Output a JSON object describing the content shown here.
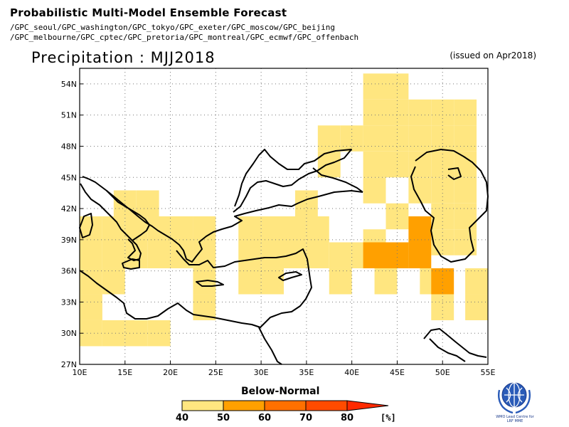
{
  "header": {
    "title": "Probabilistic Multi-Model Ensemble Forecast",
    "centers_line1": "/GPC_seoul/GPC_washington/GPC_tokyo/GPC_exeter/GPC_moscow/GPC_beijing",
    "centers_line2": "/GPC_melbourne/GPC_cptec/GPC_pretoria/GPC_montreal/GPC_ecmwf/GPC_offenbach",
    "variable": "Precipitation : MJJ2018",
    "issued": "(issued on Apr2018)"
  },
  "map": {
    "lon_range": [
      10,
      55
    ],
    "lat_range": [
      27,
      55.5
    ],
    "lon_ticks": [
      "10E",
      "15E",
      "20E",
      "25E",
      "30E",
      "35E",
      "40E",
      "45E",
      "50E",
      "55E"
    ],
    "lat_ticks": [
      "27N",
      "30N",
      "33N",
      "36N",
      "39N",
      "42N",
      "45N",
      "48N",
      "51N",
      "54N"
    ],
    "grid": "dotted",
    "cell_size_deg": 2.5,
    "below_normal_cells": [
      {
        "lon": 42.5,
        "lat": 53.75,
        "category": "40-50"
      },
      {
        "lon": 45.0,
        "lat": 53.75,
        "category": "40-50"
      },
      {
        "lon": 42.5,
        "lat": 51.25,
        "category": "40-50"
      },
      {
        "lon": 45.0,
        "lat": 51.25,
        "category": "40-50"
      },
      {
        "lon": 47.5,
        "lat": 51.25,
        "category": "40-50"
      },
      {
        "lon": 50.0,
        "lat": 51.25,
        "category": "40-50"
      },
      {
        "lon": 52.5,
        "lat": 51.25,
        "category": "40-50"
      },
      {
        "lon": 37.5,
        "lat": 48.75,
        "category": "40-50"
      },
      {
        "lon": 40.0,
        "lat": 48.75,
        "category": "40-50"
      },
      {
        "lon": 42.5,
        "lat": 48.75,
        "category": "40-50"
      },
      {
        "lon": 45.0,
        "lat": 48.75,
        "category": "40-50"
      },
      {
        "lon": 47.5,
        "lat": 48.75,
        "category": "40-50"
      },
      {
        "lon": 50.0,
        "lat": 48.75,
        "category": "40-50"
      },
      {
        "lon": 52.5,
        "lat": 48.75,
        "category": "40-50"
      },
      {
        "lon": 37.5,
        "lat": 46.25,
        "category": "40-50"
      },
      {
        "lon": 42.5,
        "lat": 46.25,
        "category": "40-50"
      },
      {
        "lon": 45.0,
        "lat": 46.25,
        "category": "40-50"
      },
      {
        "lon": 47.5,
        "lat": 46.25,
        "category": "40-50"
      },
      {
        "lon": 50.0,
        "lat": 46.25,
        "category": "40-50"
      },
      {
        "lon": 52.5,
        "lat": 46.25,
        "category": "40-50"
      },
      {
        "lon": 42.5,
        "lat": 43.75,
        "category": "40-50"
      },
      {
        "lon": 47.5,
        "lat": 43.75,
        "category": "40-50"
      },
      {
        "lon": 50.0,
        "lat": 43.75,
        "category": "40-50"
      },
      {
        "lon": 52.5,
        "lat": 43.75,
        "category": "40-50"
      },
      {
        "lon": 15.0,
        "lat": 42.5,
        "category": "40-50"
      },
      {
        "lon": 17.5,
        "lat": 42.5,
        "category": "40-50"
      },
      {
        "lon": 35.0,
        "lat": 42.5,
        "category": "40-50"
      },
      {
        "lon": 45.0,
        "lat": 41.25,
        "category": "40-50"
      },
      {
        "lon": 50.0,
        "lat": 41.25,
        "category": "40-50"
      },
      {
        "lon": 52.5,
        "lat": 41.25,
        "category": "40-50"
      },
      {
        "lon": 11.25,
        "lat": 40.0,
        "category": "40-50"
      },
      {
        "lon": 13.75,
        "lat": 40.0,
        "category": "40-50"
      },
      {
        "lon": 16.25,
        "lat": 40.0,
        "category": "40-50"
      },
      {
        "lon": 18.75,
        "lat": 40.0,
        "category": "40-50"
      },
      {
        "lon": 21.25,
        "lat": 40.0,
        "category": "40-50"
      },
      {
        "lon": 23.75,
        "lat": 40.0,
        "category": "40-50"
      },
      {
        "lon": 28.75,
        "lat": 40.0,
        "category": "40-50"
      },
      {
        "lon": 31.25,
        "lat": 40.0,
        "category": "40-50"
      },
      {
        "lon": 33.75,
        "lat": 40.0,
        "category": "40-50"
      },
      {
        "lon": 36.25,
        "lat": 40.0,
        "category": "40-50"
      },
      {
        "lon": 42.5,
        "lat": 38.75,
        "category": "40-50"
      },
      {
        "lon": 50.0,
        "lat": 38.75,
        "category": "40-50"
      },
      {
        "lon": 52.5,
        "lat": 38.75,
        "category": "40-50"
      },
      {
        "lon": 11.25,
        "lat": 37.5,
        "category": "40-50"
      },
      {
        "lon": 13.75,
        "lat": 37.5,
        "category": "40-50"
      },
      {
        "lon": 16.25,
        "lat": 37.5,
        "category": "40-50"
      },
      {
        "lon": 18.75,
        "lat": 37.5,
        "category": "40-50"
      },
      {
        "lon": 21.25,
        "lat": 37.5,
        "category": "40-50"
      },
      {
        "lon": 23.75,
        "lat": 37.5,
        "category": "40-50"
      },
      {
        "lon": 28.75,
        "lat": 37.5,
        "category": "40-50"
      },
      {
        "lon": 31.25,
        "lat": 37.5,
        "category": "40-50"
      },
      {
        "lon": 33.75,
        "lat": 37.5,
        "category": "40-50"
      },
      {
        "lon": 36.25,
        "lat": 37.5,
        "category": "40-50"
      },
      {
        "lon": 38.75,
        "lat": 37.5,
        "category": "40-50"
      },
      {
        "lon": 41.25,
        "lat": 37.5,
        "category": "40-50"
      },
      {
        "lon": 11.25,
        "lat": 35.0,
        "category": "40-50"
      },
      {
        "lon": 13.75,
        "lat": 35.0,
        "category": "40-50"
      },
      {
        "lon": 23.75,
        "lat": 35.0,
        "category": "40-50"
      },
      {
        "lon": 28.75,
        "lat": 35.0,
        "category": "40-50"
      },
      {
        "lon": 31.25,
        "lat": 35.0,
        "category": "40-50"
      },
      {
        "lon": 38.75,
        "lat": 35.0,
        "category": "40-50"
      },
      {
        "lon": 43.75,
        "lat": 35.0,
        "category": "40-50"
      },
      {
        "lon": 48.75,
        "lat": 35.0,
        "category": "40-50"
      },
      {
        "lon": 53.75,
        "lat": 35.0,
        "category": "40-50"
      },
      {
        "lon": 11.25,
        "lat": 32.5,
        "category": "40-50"
      },
      {
        "lon": 23.75,
        "lat": 32.5,
        "category": "40-50"
      },
      {
        "lon": 50.0,
        "lat": 32.5,
        "category": "40-50"
      },
      {
        "lon": 53.75,
        "lat": 32.5,
        "category": "40-50"
      },
      {
        "lon": 11.25,
        "lat": 30.0,
        "category": "40-50"
      },
      {
        "lon": 13.75,
        "lat": 30.0,
        "category": "40-50"
      },
      {
        "lon": 16.25,
        "lat": 30.0,
        "category": "40-50"
      },
      {
        "lon": 18.75,
        "lat": 30.0,
        "category": "40-50"
      },
      {
        "lon": 47.5,
        "lat": 40.0,
        "category": "50-60"
      },
      {
        "lon": 42.5,
        "lat": 37.5,
        "category": "50-60"
      },
      {
        "lon": 45.0,
        "lat": 37.5,
        "category": "50-60"
      },
      {
        "lon": 47.5,
        "lat": 37.5,
        "category": "50-60"
      },
      {
        "lon": 50.0,
        "lat": 35.0,
        "category": "50-60"
      }
    ]
  },
  "legend": {
    "title": "Below-Normal",
    "ticks": [
      "40",
      "50",
      "60",
      "70",
      "80"
    ],
    "unit": "[%]",
    "colors": [
      "#ffe680",
      "#ffa000",
      "#ff7000",
      "#ff4b00",
      "#ff2a00"
    ]
  },
  "colors": {
    "cat_40_50": "#ffe680",
    "cat_50_60": "#ffa000",
    "coast": "#000000",
    "land_background": "#ffffff"
  },
  "logo": {
    "text": "WMO Lead Centre for LRF MME"
  }
}
